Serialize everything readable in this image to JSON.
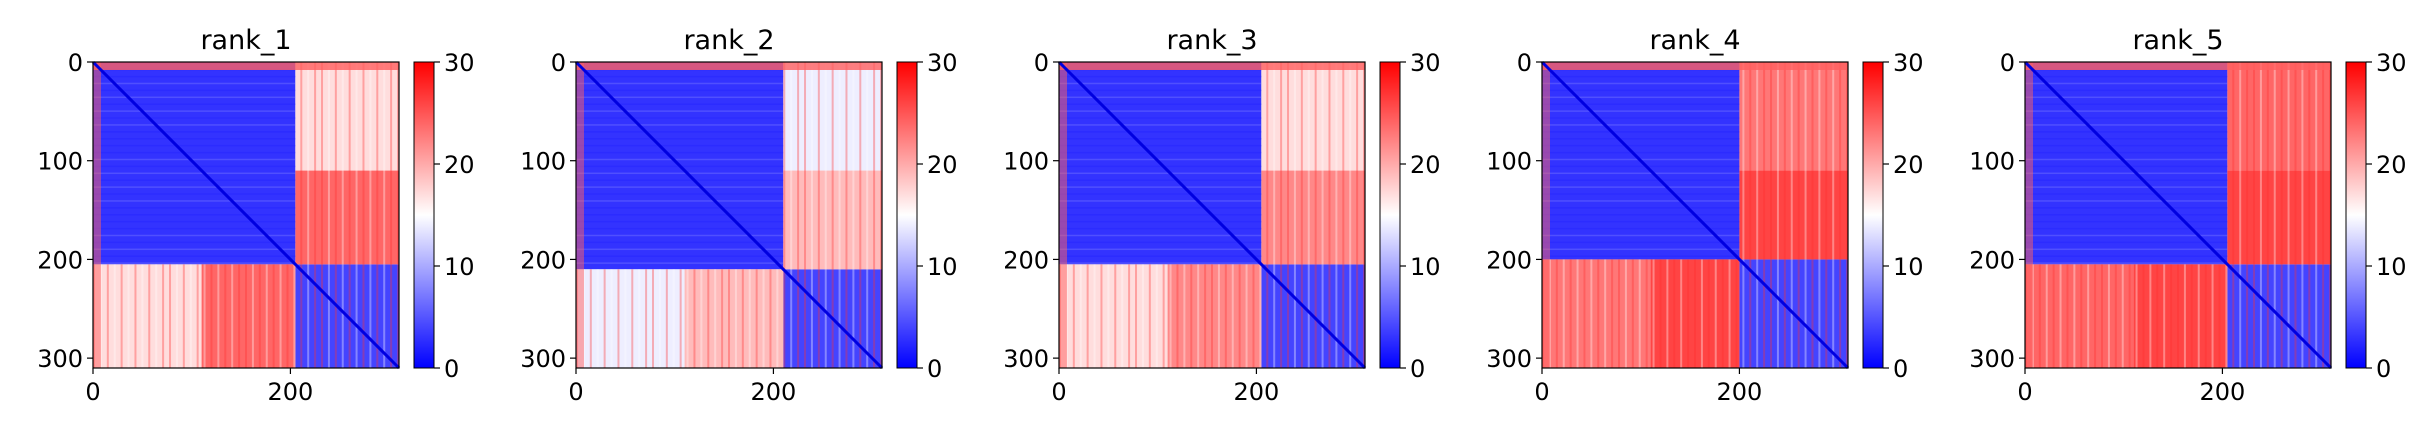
{
  "chart_data": [
    {
      "type": "heatmap",
      "title": "rank_1",
      "x_ticks": [
        0,
        200
      ],
      "y_ticks": [
        0,
        100,
        200,
        300
      ],
      "colorbar_ticks": [
        0,
        10,
        20,
        30
      ],
      "vmin": 0,
      "vmax": 30,
      "colormap": [
        "#0000ff",
        "#ffffff",
        "#ff0000"
      ],
      "matrix_size": 310,
      "domain_boundary": 205,
      "blocks": {
        "domain_a_intra": 3,
        "domain_b_intra": 4,
        "inter_domain_first_segment_end": 110,
        "inter_domain_first_segment_value": 17,
        "inter_domain_second_segment_value": 24
      }
    },
    {
      "type": "heatmap",
      "title": "rank_2",
      "x_ticks": [
        0,
        200
      ],
      "y_ticks": [
        0,
        100,
        200,
        300
      ],
      "colorbar_ticks": [
        0,
        10,
        20,
        30
      ],
      "vmin": 0,
      "vmax": 30,
      "colormap": [
        "#0000ff",
        "#ffffff",
        "#ff0000"
      ],
      "matrix_size": 310,
      "domain_boundary": 210,
      "blocks": {
        "domain_a_intra": 3,
        "domain_b_intra": 4,
        "inter_domain_first_segment_end": 110,
        "inter_domain_first_segment_value": 14,
        "inter_domain_second_segment_value": 19
      }
    },
    {
      "type": "heatmap",
      "title": "rank_3",
      "x_ticks": [
        0,
        200
      ],
      "y_ticks": [
        0,
        100,
        200,
        300
      ],
      "colorbar_ticks": [
        0,
        10,
        20,
        30
      ],
      "vmin": 0,
      "vmax": 30,
      "colormap": [
        "#0000ff",
        "#ffffff",
        "#ff0000"
      ],
      "matrix_size": 310,
      "domain_boundary": 205,
      "blocks": {
        "domain_a_intra": 3,
        "domain_b_intra": 4,
        "inter_domain_first_segment_end": 110,
        "inter_domain_first_segment_value": 17,
        "inter_domain_second_segment_value": 22
      }
    },
    {
      "type": "heatmap",
      "title": "rank_4",
      "x_ticks": [
        0,
        200
      ],
      "y_ticks": [
        0,
        100,
        200,
        300
      ],
      "colorbar_ticks": [
        0,
        10,
        20,
        30
      ],
      "vmin": 0,
      "vmax": 30,
      "colormap": [
        "#0000ff",
        "#ffffff",
        "#ff0000"
      ],
      "matrix_size": 310,
      "domain_boundary": 200,
      "blocks": {
        "domain_a_intra": 3,
        "domain_b_intra": 4,
        "inter_domain_first_segment_end": 110,
        "inter_domain_first_segment_value": 23,
        "inter_domain_second_segment_value": 26
      }
    },
    {
      "type": "heatmap",
      "title": "rank_5",
      "x_ticks": [
        0,
        200
      ],
      "y_ticks": [
        0,
        100,
        200,
        300
      ],
      "colorbar_ticks": [
        0,
        10,
        20,
        30
      ],
      "vmin": 0,
      "vmax": 30,
      "colormap": [
        "#0000ff",
        "#ffffff",
        "#ff0000"
      ],
      "matrix_size": 310,
      "domain_boundary": 205,
      "blocks": {
        "domain_a_intra": 3,
        "domain_b_intra": 4,
        "inter_domain_first_segment_end": 110,
        "inter_domain_first_segment_value": 24,
        "inter_domain_second_segment_value": 26
      }
    }
  ]
}
